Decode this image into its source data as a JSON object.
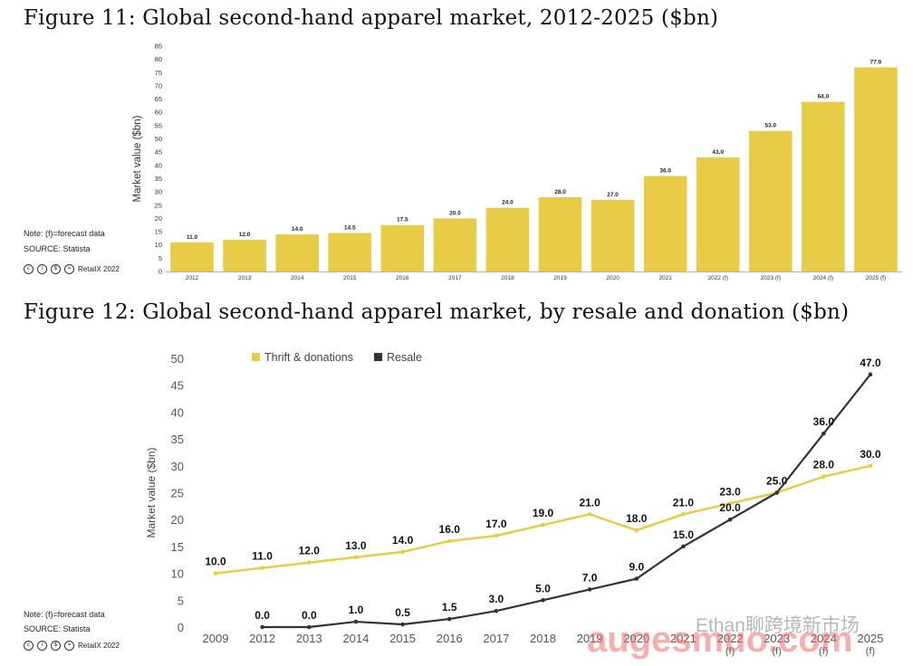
{
  "figure11": {
    "title": "Figure 11: Global second-hand apparel market, 2012-2025 ($bn)",
    "note": "Note: (f)=forecast data",
    "source": "SOURCE: Statista",
    "credit": "RetailX 2022"
  },
  "figure12": {
    "title": "Figure 12: Global second-hand apparel market, by resale and donation ($bn)",
    "note": "Note: (f)=forecast data",
    "source": "SOURCE: Statista",
    "credit": "RetailX 2022"
  },
  "watermark": {
    "text1": "augesmuo.com",
    "text2": "Ethan聊跨境新市场"
  },
  "colors": {
    "bar": "#e8cb47",
    "thrift": "#e8cb47",
    "resale": "#333333"
  },
  "chart_data": [
    {
      "type": "bar",
      "title": "Figure 11: Global second-hand apparel market, 2012-2025 ($bn)",
      "categories": [
        "2012",
        "2013",
        "2014",
        "2015",
        "2016",
        "2017",
        "2018",
        "2019",
        "2020",
        "2021",
        "2022 (f)",
        "2023 (f)",
        "2024 (f)",
        "2025 (f)"
      ],
      "values": [
        11.0,
        12.0,
        14.0,
        14.5,
        17.5,
        20.0,
        24.0,
        28.0,
        27.0,
        36.0,
        43.0,
        53.0,
        64.0,
        77.0
      ],
      "value_labels": [
        "11.0",
        "12.0",
        "14.0",
        "14.5",
        "17.5",
        "20.0",
        "24.0",
        "28.0",
        "27.0",
        "36.0",
        "43.0",
        "53.0",
        "64.0",
        "77.0"
      ],
      "ylabel": "Market value ($bn)",
      "ylim": [
        0,
        85
      ],
      "yticks": [
        "0",
        "5",
        "10",
        "15",
        "20",
        "25",
        "30",
        "35",
        "40",
        "45",
        "50",
        "55",
        "60",
        "65",
        "70",
        "75",
        "80",
        "85"
      ],
      "grid": false
    },
    {
      "type": "line",
      "title": "Figure 12: Global second-hand apparel market, by resale and donation ($bn)",
      "categories": [
        "2009",
        "2012",
        "2013",
        "2014",
        "2015",
        "2016",
        "2017",
        "2018",
        "2019",
        "2020",
        "2021",
        "2022\n(f)",
        "2023\n(f)",
        "2024\n(f)",
        "2025\n(f)"
      ],
      "series": [
        {
          "name": "Thrift & donations",
          "values": [
            10.0,
            11.0,
            12.0,
            13.0,
            14.0,
            16.0,
            17.0,
            19.0,
            21.0,
            18.0,
            21.0,
            23.0,
            25.0,
            28.0,
            30.0
          ],
          "labels": [
            "10.0",
            "11.0",
            "12.0",
            "13.0",
            "14.0",
            "16.0",
            "17.0",
            "19.0",
            "21.0",
            "18.0",
            "21.0",
            "23.0",
            "25.0",
            "28.0",
            "30.0"
          ]
        },
        {
          "name": "Resale",
          "values": [
            null,
            0.0,
            0.0,
            1.0,
            0.5,
            1.5,
            3.0,
            5.0,
            7.0,
            9.0,
            15.0,
            20.0,
            25.0,
            36.0,
            47.0
          ],
          "labels": [
            null,
            "0.0",
            "0.0",
            "1.0",
            "0.5",
            "1.5",
            "3.0",
            "5.0",
            "7.0",
            "9.0",
            "15.0",
            "20.0",
            null,
            "36.0",
            "47.0"
          ]
        }
      ],
      "ylabel": "Market value ($bn)",
      "ylim": [
        0,
        50
      ],
      "yticks": [
        "0",
        "5",
        "10",
        "15",
        "20",
        "25",
        "30",
        "35",
        "40",
        "45",
        "50"
      ],
      "legend": "top-left",
      "grid": false
    }
  ]
}
